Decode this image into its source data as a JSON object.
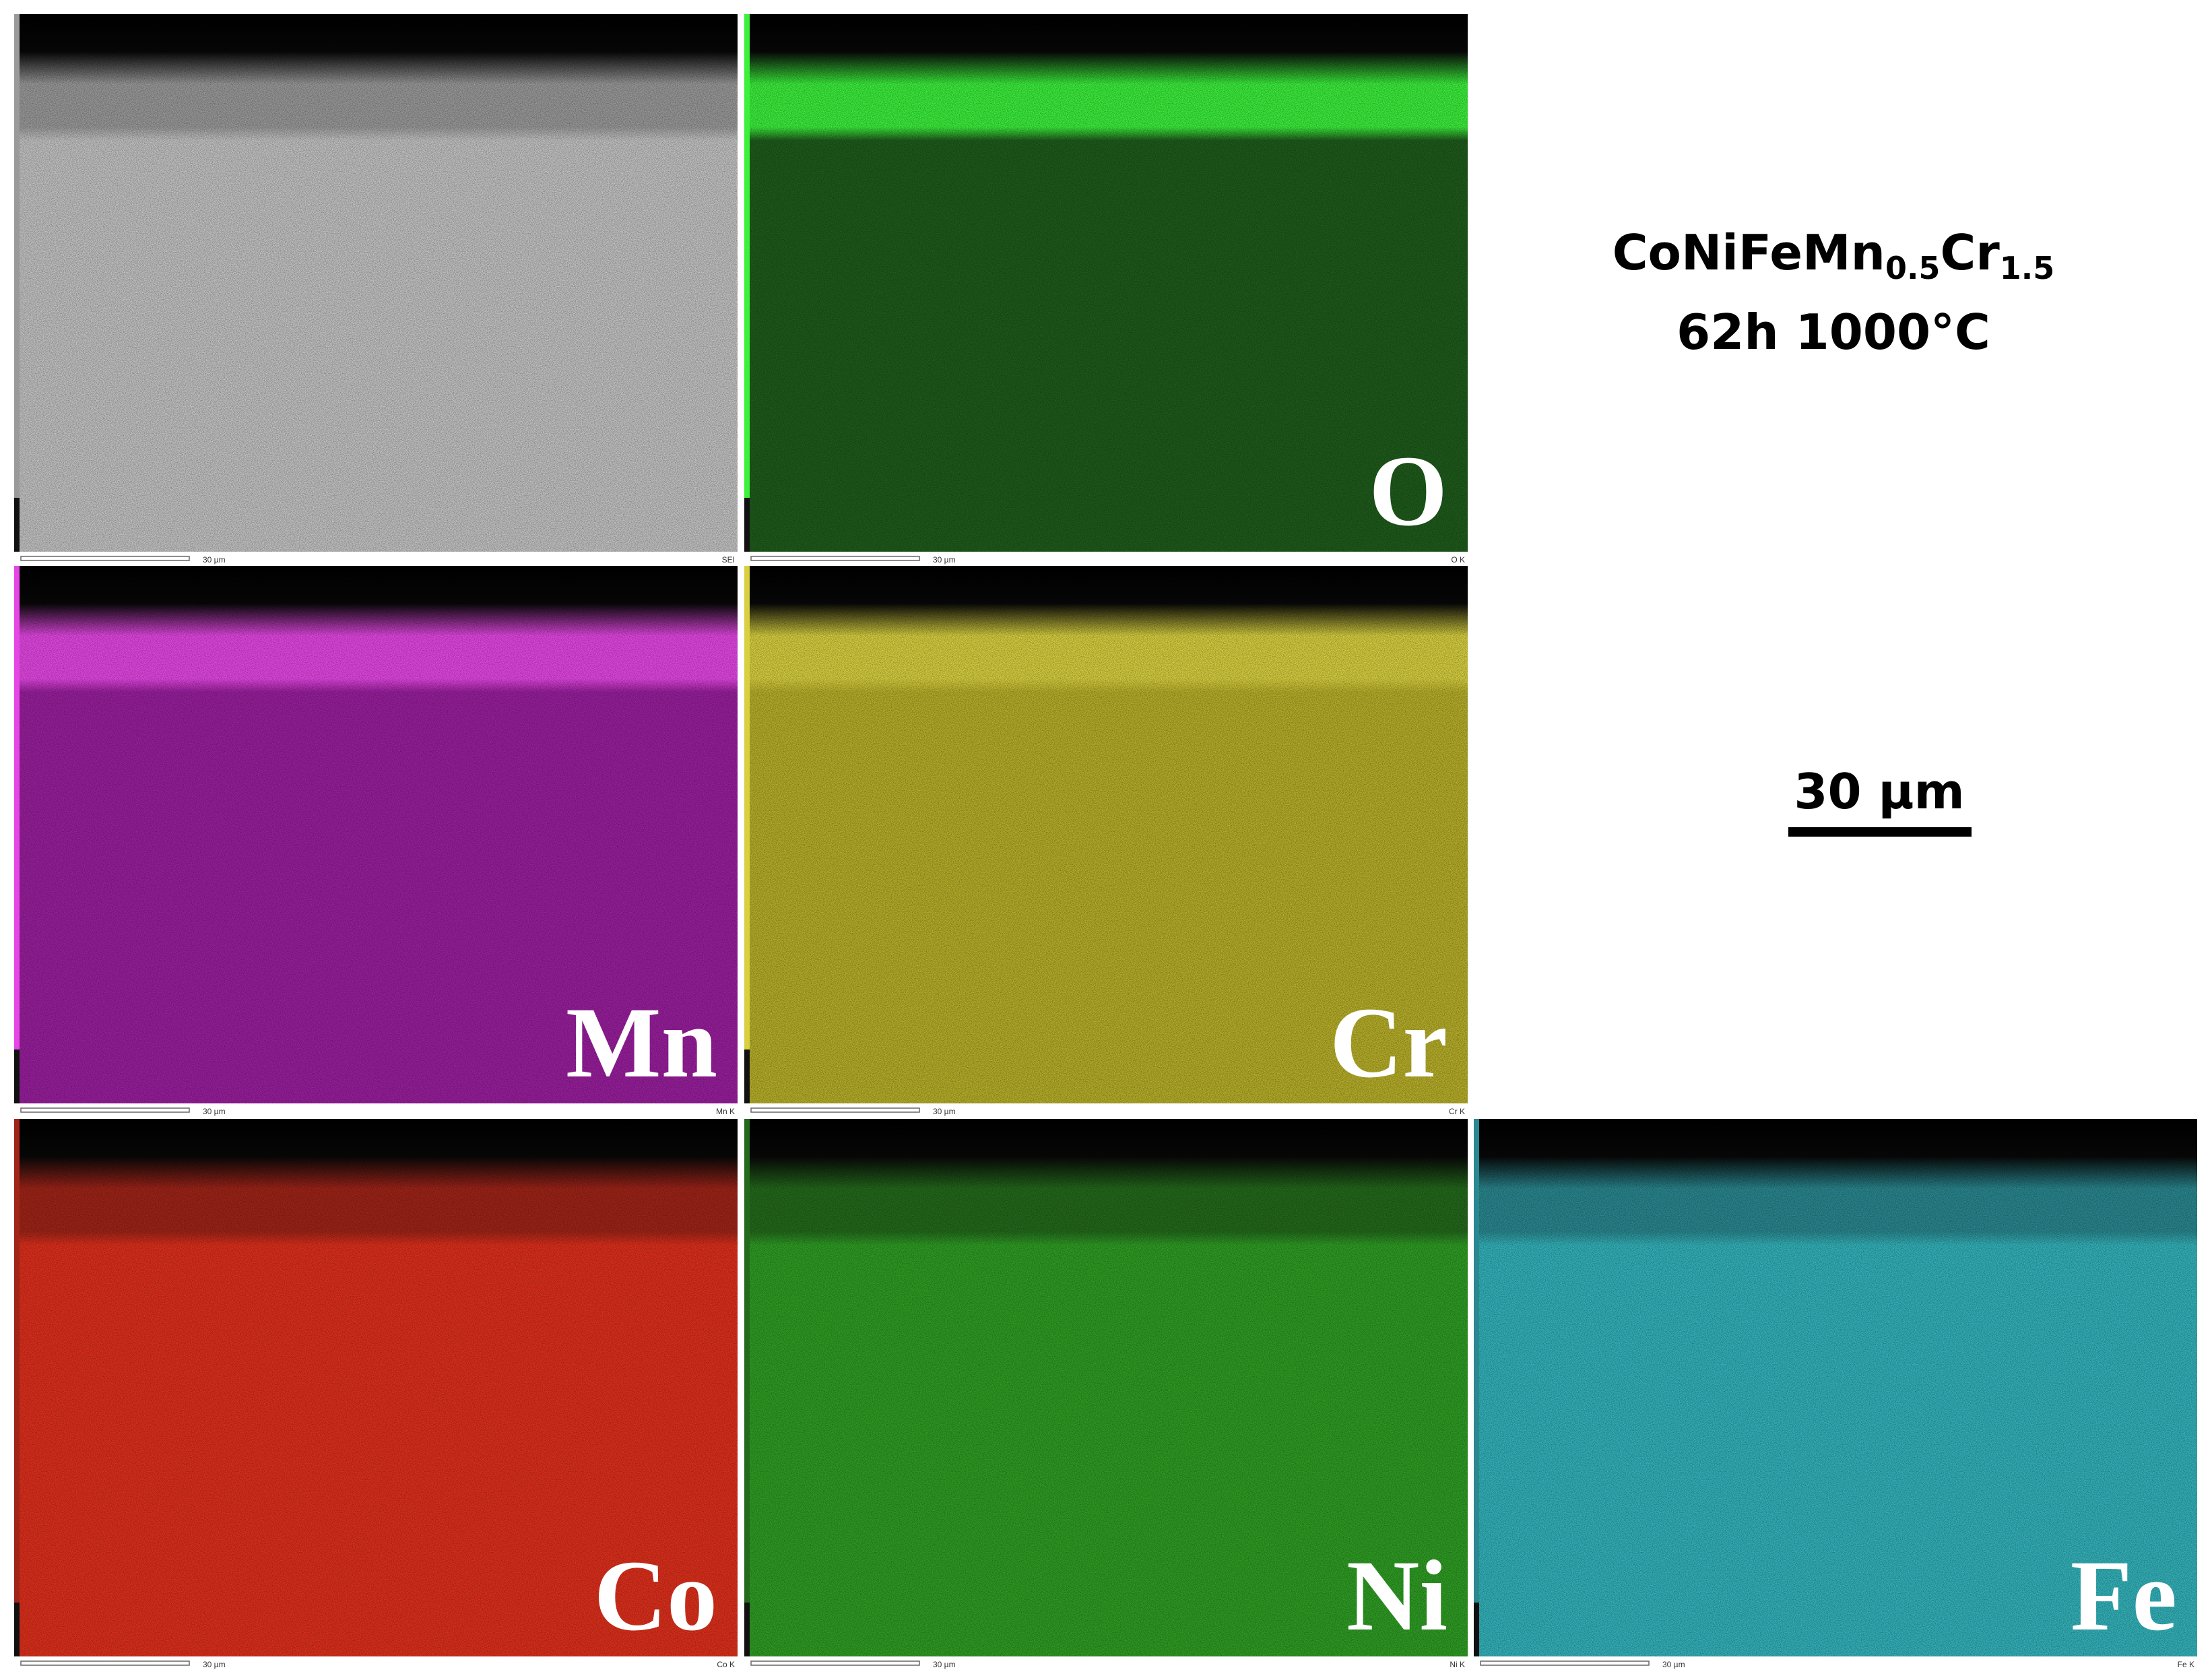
{
  "title": {
    "formula": [
      "CoNiFeMn",
      "0.5",
      "Cr",
      "1.5"
    ],
    "condition": "62h 1000°C"
  },
  "scale_bar": {
    "label": "30 µm"
  },
  "panels": [
    {
      "signal": "SEI",
      "scale": "30 µm",
      "color": "#c4c4c4",
      "band_color": "#9a9a9a"
    },
    {
      "label": "O",
      "signal": "O K",
      "scale": "30 µm",
      "color": "#1f5c1c",
      "band_color": "#3cf03c"
    },
    {
      "label": "Mn",
      "signal": "Mn K",
      "scale": "30 µm",
      "color": "#9a1f9e",
      "band_color": "#e447e4"
    },
    {
      "label": "Cr",
      "signal": "Cr K",
      "scale": "30 µm",
      "color": "#b8b02a",
      "band_color": "#d8d040"
    },
    {
      "label": "Co",
      "signal": "Co K",
      "scale": "30 µm",
      "color": "#e0301c",
      "band_color": "#a02418"
    },
    {
      "label": "Ni",
      "signal": "Ni K",
      "scale": "30 µm",
      "color": "#2f9e24",
      "band_color": "#246a1c"
    },
    {
      "label": "Fe",
      "signal": "Fe K",
      "scale": "30 µm",
      "color": "#34b4bc",
      "band_color": "#2a8890"
    }
  ]
}
